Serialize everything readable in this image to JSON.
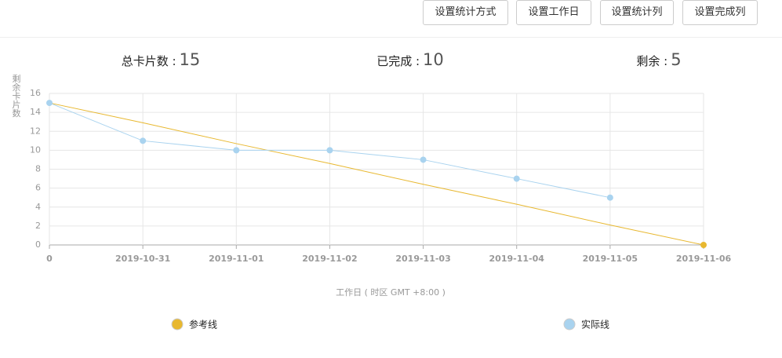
{
  "buttons": [
    "设置统计方式",
    "设置工作日",
    "设置统计列",
    "设置完成列"
  ],
  "stats": [
    {
      "label": "总卡片数 :",
      "value": 15
    },
    {
      "label": "已完成 :",
      "value": 10
    },
    {
      "label": "剩余 :",
      "value": 5
    }
  ],
  "chart_data": {
    "type": "line",
    "y_label": "剩余卡片数",
    "x_label": "工作日 ( 时区 GMT +8:00 )",
    "categories": [
      "0",
      "2019-10-31",
      "2019-11-01",
      "2019-11-02",
      "2019-11-03",
      "2019-11-04",
      "2019-11-05",
      "2019-11-06"
    ],
    "series": [
      {
        "name": "参考线",
        "color": "#e8b830",
        "values": [
          15,
          12.9,
          10.7,
          8.6,
          6.4,
          4.3,
          2.1,
          0
        ]
      },
      {
        "name": "实际线",
        "color": "#a9d3ef",
        "values": [
          15,
          11,
          10,
          10,
          9,
          7,
          5,
          null
        ]
      }
    ],
    "ylim": [
      0,
      16
    ],
    "yticks": [
      0,
      2,
      4,
      6,
      8,
      10,
      12,
      14,
      16
    ],
    "grid": true
  }
}
